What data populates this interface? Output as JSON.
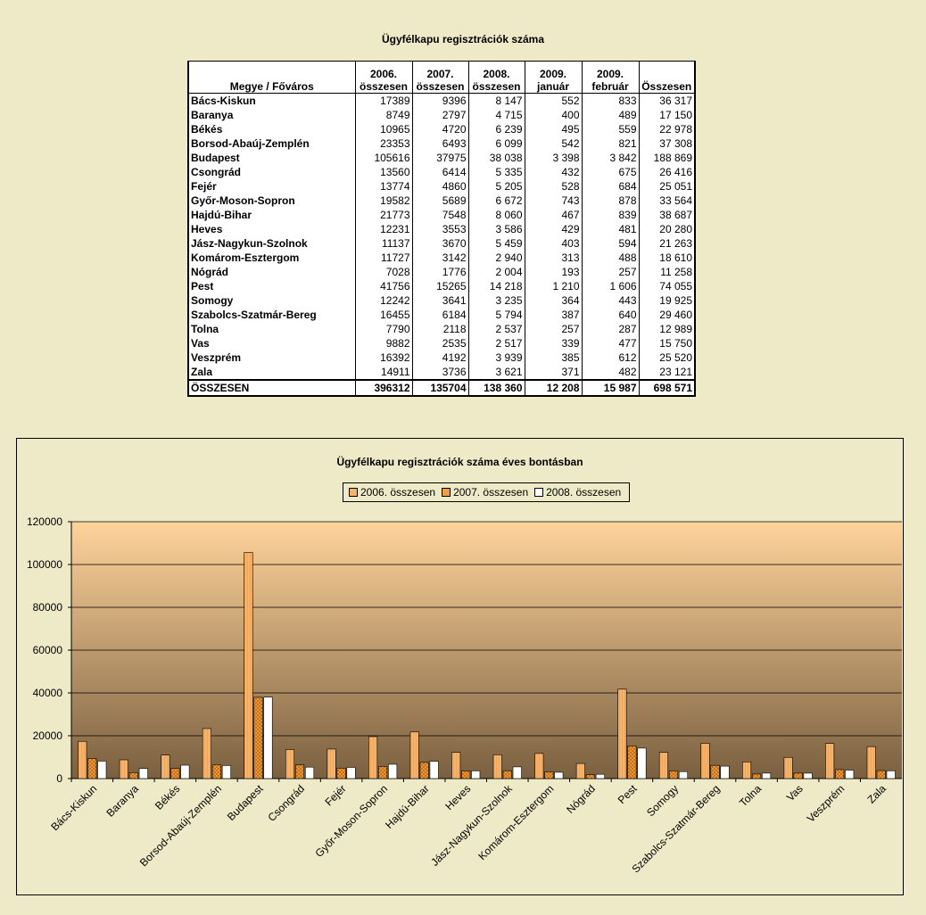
{
  "table": {
    "title": "Ügyfélkapu regisztrációk száma",
    "headers": {
      "county": "Megye / Főváros",
      "cols": [
        [
          "2006.",
          "összesen"
        ],
        [
          "2007.",
          "összesen"
        ],
        [
          "2008.",
          "összesen"
        ],
        [
          "2009.",
          "január"
        ],
        [
          "2009.",
          "február"
        ],
        [
          "",
          "Összesen"
        ]
      ]
    },
    "rows": [
      [
        "Bács-Kiskun",
        "17389",
        "9396",
        "8 147",
        "552",
        "833",
        "36 317"
      ],
      [
        "Baranya",
        "8749",
        "2797",
        "4 715",
        "400",
        "489",
        "17 150"
      ],
      [
        "Békés",
        "10965",
        "4720",
        "6 239",
        "495",
        "559",
        "22 978"
      ],
      [
        "Borsod-Abaúj-Zemplén",
        "23353",
        "6493",
        "6 099",
        "542",
        "821",
        "37 308"
      ],
      [
        "Budapest",
        "105616",
        "37975",
        "38 038",
        "3 398",
        "3 842",
        "188 869"
      ],
      [
        "Csongrád",
        "13560",
        "6414",
        "5 335",
        "432",
        "675",
        "26 416"
      ],
      [
        "Fejér",
        "13774",
        "4860",
        "5 205",
        "528",
        "684",
        "25 051"
      ],
      [
        "Győr-Moson-Sopron",
        "19582",
        "5689",
        "6 672",
        "743",
        "878",
        "33 564"
      ],
      [
        "Hajdú-Bihar",
        "21773",
        "7548",
        "8 060",
        "467",
        "839",
        "38 687"
      ],
      [
        "Heves",
        "12231",
        "3553",
        "3 586",
        "429",
        "481",
        "20 280"
      ],
      [
        "Jász-Nagykun-Szolnok",
        "11137",
        "3670",
        "5 459",
        "403",
        "594",
        "21 263"
      ],
      [
        "Komárom-Esztergom",
        "11727",
        "3142",
        "2 940",
        "313",
        "488",
        "18 610"
      ],
      [
        "Nógrád",
        "7028",
        "1776",
        "2 004",
        "193",
        "257",
        "11 258"
      ],
      [
        "Pest",
        "41756",
        "15265",
        "14 218",
        "1 210",
        "1 606",
        "74 055"
      ],
      [
        "Somogy",
        "12242",
        "3641",
        "3 235",
        "364",
        "443",
        "19 925"
      ],
      [
        "Szabolcs-Szatmár-Bereg",
        "16455",
        "6184",
        "5 794",
        "387",
        "640",
        "29 460"
      ],
      [
        "Tolna",
        "7790",
        "2118",
        "2 537",
        "257",
        "287",
        "12 989"
      ],
      [
        "Vas",
        "9882",
        "2535",
        "2 517",
        "339",
        "477",
        "15 750"
      ],
      [
        "Veszprém",
        "16392",
        "4192",
        "3 939",
        "385",
        "612",
        "25 520"
      ],
      [
        "Zala",
        "14911",
        "3736",
        "3 621",
        "371",
        "482",
        "23 121"
      ]
    ],
    "total": [
      "ÖSSZESEN",
      "396312",
      "135704",
      "138 360",
      "12 208",
      "15 987",
      "698 571"
    ]
  },
  "chart_data": {
    "type": "bar",
    "title": "Ügyfélkapu regisztrációk száma éves bontásban",
    "categories": [
      "Bács-Kiskun",
      "Baranya",
      "Békés",
      "Borsod-Abaúj-Zemplén",
      "Budapest",
      "Csongrád",
      "Fejér",
      "Győr-Moson-Sopron",
      "Hajdú-Bihar",
      "Heves",
      "Jász-Nagykun-Szolnok",
      "Komárom-Esztergom",
      "Nógrád",
      "Pest",
      "Somogy",
      "Szabolcs-Szatmár-Bereg",
      "Tolna",
      "Vas",
      "Veszprém",
      "Zala"
    ],
    "series": [
      {
        "name": "2006. összesen",
        "values": [
          17389,
          8749,
          10965,
          23353,
          105616,
          13560,
          13774,
          19582,
          21773,
          12231,
          11137,
          11727,
          7028,
          41756,
          12242,
          16455,
          7790,
          9882,
          16392,
          14911
        ]
      },
      {
        "name": "2007. összesen",
        "values": [
          9396,
          2797,
          4720,
          6493,
          37975,
          6414,
          4860,
          5689,
          7548,
          3553,
          3670,
          3142,
          1776,
          15265,
          3641,
          6184,
          2118,
          2535,
          4192,
          3736
        ]
      },
      {
        "name": "2008. összesen",
        "values": [
          8147,
          4715,
          6239,
          6099,
          38038,
          5335,
          5205,
          6672,
          8060,
          3586,
          5459,
          2940,
          2004,
          14218,
          3235,
          5794,
          2537,
          2517,
          3939,
          3621
        ]
      }
    ],
    "ylim": [
      0,
      120000
    ],
    "yticks": [
      "0",
      "20000",
      "40000",
      "60000",
      "80000",
      "100000",
      "120000"
    ],
    "grid": true,
    "legend": "top",
    "colors": {
      "plot_top": "#FFD39B",
      "plot_bottom": "#7A6040",
      "s2006": "#F5B36B",
      "s2007": "#F0A040",
      "s2008": "#FFFFFF"
    }
  }
}
